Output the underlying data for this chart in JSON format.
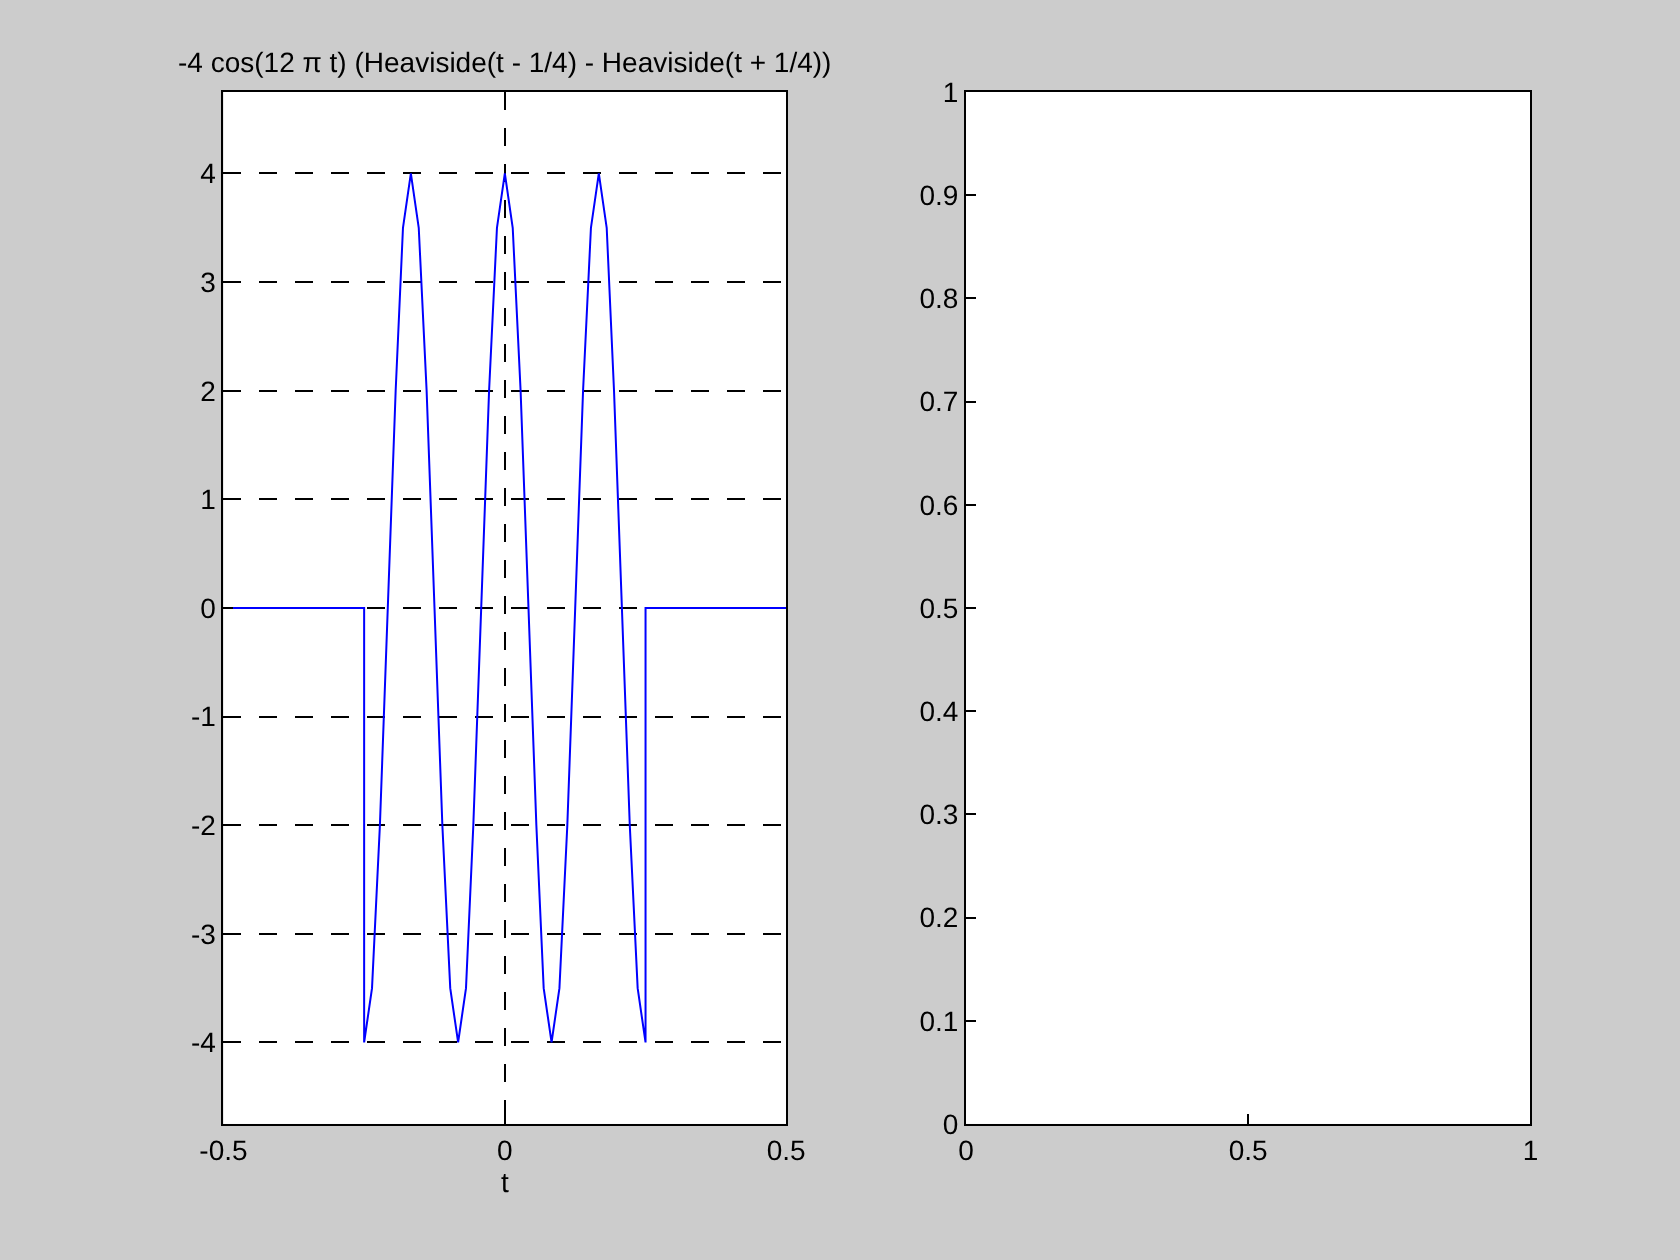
{
  "chart_data": [
    {
      "type": "line",
      "title": "-4 cos(12 π t) (Heaviside(t - 1/4) - Heaviside(t + 1/4))",
      "xlabel": "t",
      "series": [
        {
          "color": "#0000ff",
          "x": [
            -0.5,
            -0.25,
            -0.25,
            -0.236,
            -0.222,
            -0.208,
            -0.194,
            -0.181,
            -0.167,
            -0.153,
            -0.139,
            -0.125,
            -0.111,
            -0.097,
            -0.083,
            -0.069,
            -0.056,
            -0.042,
            -0.028,
            -0.014,
            0,
            0.014,
            0.028,
            0.042,
            0.056,
            0.069,
            0.083,
            0.097,
            0.111,
            0.125,
            0.139,
            0.153,
            0.167,
            0.181,
            0.194,
            0.208,
            0.222,
            0.236,
            0.25,
            0.25,
            0.5
          ],
          "values": [
            0,
            0,
            -4,
            -3.5,
            -2,
            0,
            2,
            3.5,
            4,
            3.5,
            2,
            0,
            -2,
            -3.5,
            -4,
            -3.5,
            -2,
            0,
            2,
            3.5,
            4,
            3.5,
            2,
            0,
            -2,
            -3.5,
            -4,
            -3.5,
            -2,
            0,
            2,
            3.5,
            4,
            3.5,
            2,
            0,
            -2,
            -3.5,
            -4,
            0,
            0
          ]
        }
      ],
      "xlim": [
        -0.5,
        0.5
      ],
      "xticks": [
        -0.5,
        0,
        0.5
      ],
      "ylim": [
        -4.75,
        4.75
      ],
      "yticks": [
        -4,
        -3,
        -2,
        -1,
        0,
        1,
        2,
        3,
        4
      ],
      "grid": true,
      "line_style": "solid",
      "marker": "none"
    },
    {
      "type": "line",
      "xlim": [
        0,
        1
      ],
      "xticks": [
        0,
        0.5,
        1
      ],
      "ylim": [
        0,
        1
      ],
      "yticks": [
        0,
        0.1,
        0.2,
        0.3,
        0.4,
        0.5,
        0.6,
        0.7,
        0.8,
        0.9,
        1
      ],
      "grid": false
    }
  ]
}
